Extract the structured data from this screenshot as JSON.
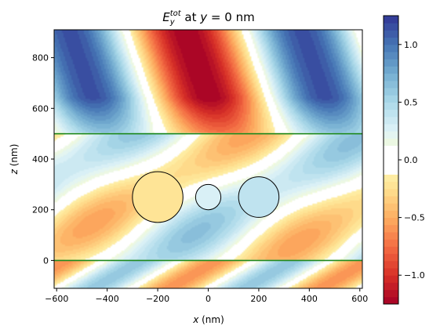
{
  "chart_data": {
    "type": "heatmap",
    "title": {
      "base": "E",
      "sub": "y",
      "sup": "tot",
      "rest_pre": " at ",
      "var": "y",
      "rest_post": " = 0 nm"
    },
    "xlabel": {
      "var": "x",
      "unit": " (nm)"
    },
    "ylabel": {
      "var": "z",
      "unit": " (nm)"
    },
    "xlim": [
      -610,
      610
    ],
    "ylim": [
      -110,
      910
    ],
    "x_ticks": [
      -600,
      -400,
      -200,
      0,
      200,
      400,
      600
    ],
    "y_ticks": [
      0,
      200,
      400,
      600,
      800
    ],
    "colorbar": {
      "range": [
        -1.25,
        1.25
      ],
      "ticks": [
        -1.0,
        -0.5,
        0.0,
        0.5,
        1.0
      ],
      "tick_labels": [
        "−1.0",
        "−0.5",
        "0.0",
        "0.5",
        "1.0"
      ],
      "colormap": "RdYlBu",
      "levels": 40
    },
    "interfaces_z": [
      0,
      500
    ],
    "interface_color": "#1f8a1f",
    "circles": [
      {
        "cx": -200,
        "cz": 250,
        "r": 100
      },
      {
        "cx": 0,
        "cz": 250,
        "r": 50
      },
      {
        "cx": 200,
        "cz": 250,
        "r": 80
      }
    ],
    "field_regions": {
      "top": {
        "z_range": [
          500,
          910
        ],
        "pattern": "standing",
        "period_x": 920,
        "amplitude": 1.2,
        "max_center": [
          -480,
          640
        ],
        "min_center": [
          0,
          660
        ]
      },
      "middle": {
        "z_range": [
          0,
          500
        ],
        "pattern": "oblique_stripes",
        "amplitude": 0.6
      },
      "bottom": {
        "z_range": [
          -110,
          0
        ],
        "pattern": "oblique_stripes",
        "amplitude": 0.7
      }
    }
  }
}
